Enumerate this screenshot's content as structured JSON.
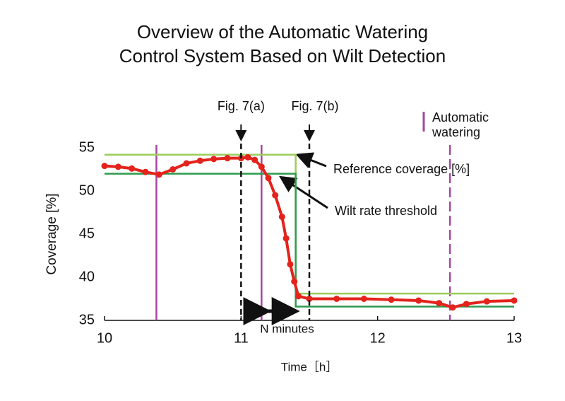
{
  "chart_data": {
    "type": "line",
    "title": [
      "Overview of the Automatic Watering",
      "Control System Based on Wilt Detection"
    ],
    "x_label": "Time［h］",
    "y_label": "Coverage [%]",
    "xlim": [
      10,
      13
    ],
    "xticks": [
      10,
      11,
      12,
      13
    ],
    "ylim": [
      35,
      55
    ],
    "yticks": [
      35,
      40,
      45,
      50,
      55
    ],
    "coverage": {
      "color": "#e3231c",
      "x": [
        10.0,
        10.1,
        10.2,
        10.3,
        10.4,
        10.5,
        10.6,
        10.7,
        10.8,
        10.9,
        11.0,
        11.05,
        11.1,
        11.15,
        11.2,
        11.25,
        11.3,
        11.33,
        11.36,
        11.39,
        11.42,
        11.5,
        11.7,
        11.9,
        12.1,
        12.3,
        12.45,
        12.55,
        12.65,
        12.8,
        13.0
      ],
      "values": [
        52.9,
        52.8,
        52.6,
        52.2,
        51.9,
        52.5,
        53.2,
        53.5,
        53.7,
        53.8,
        53.8,
        53.9,
        53.6,
        52.8,
        51.5,
        49.5,
        47.0,
        44.5,
        41.5,
        39.5,
        37.8,
        37.5,
        37.5,
        37.5,
        37.4,
        37.3,
        37.0,
        36.5,
        36.9,
        37.2,
        37.3
      ]
    },
    "series": [
      {
        "name": "Reference coverage [%]",
        "color": "#9ccc5a",
        "x": [
          10,
          11.4,
          11.4,
          13
        ],
        "values": [
          54.2,
          54.2,
          38.1,
          38.1
        ]
      },
      {
        "name": "Wilt rate threshold",
        "color": "#2e9a4e",
        "x": [
          10,
          11.4,
          11.4,
          13
        ],
        "values": [
          52.0,
          52.0,
          36.6,
          36.6
        ]
      }
    ],
    "watering": {
      "label": [
        "Automatic",
        "watering"
      ],
      "color": "#a4479f",
      "x": [
        10.38,
        11.15,
        12.53
      ]
    },
    "markers": [
      {
        "text": "Fig. 7(a)",
        "x": 11.0
      },
      {
        "text": "Fig. 7(b)",
        "x": 11.5
      }
    ],
    "interval": {
      "text": "N minutes",
      "x": [
        11.15,
        11.4
      ]
    }
  }
}
